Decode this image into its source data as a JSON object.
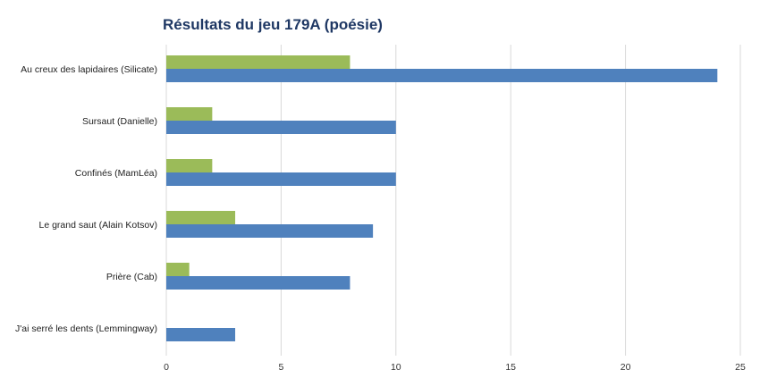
{
  "chart_data": {
    "type": "bar",
    "orientation": "horizontal",
    "title": "Résultats du jeu 179A (poésie)",
    "categories": [
      "Au creux des lapidaires (Silicate)",
      "Sursaut (Danielle)",
      "Confinés (MamLéa)",
      "Le grand saut (Alain Kotsov)",
      "Prière (Cab)",
      "J'ai serré les dents (Lemmingway)"
    ],
    "series": [
      {
        "color": "#9bbb59",
        "values": [
          8,
          2,
          2,
          3,
          1,
          0
        ]
      },
      {
        "color": "#4f81bd",
        "values": [
          24,
          10,
          10,
          9,
          8,
          3
        ]
      }
    ],
    "xlim": [
      0,
      25
    ],
    "xticks": [
      0,
      5,
      10,
      15,
      20,
      25
    ],
    "grid": true,
    "legend": "none",
    "xlabel": "",
    "ylabel": ""
  }
}
